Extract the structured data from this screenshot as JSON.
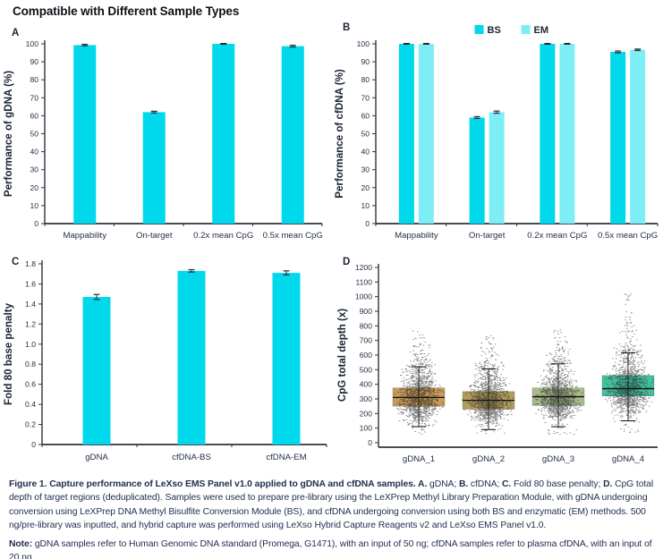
{
  "page_title": "Compatible with Different Sample Types",
  "colors": {
    "bs_cyan": "#00d8ec",
    "em_cyan": "#7deef6",
    "axis_line": "#2f3338",
    "axis_text": "#233047",
    "error_bar": "#2b2b2b",
    "point_color": "#1b1b1b",
    "caption_text": "#22304f"
  },
  "chart_data": [
    {
      "panel": "A",
      "type": "bar",
      "title": "",
      "xlabel": "",
      "ylabel": "Performance of gDNA (%)",
      "ylim": [
        0,
        100
      ],
      "ystep": 10,
      "categories": [
        "Mappability",
        "On-target",
        "0.2x mean CpG",
        "0.5x mean CpG"
      ],
      "series": [
        {
          "name": "gDNA",
          "color": "#00d8ec",
          "values": [
            99.3,
            62,
            100,
            98.7
          ],
          "errors": [
            0.4,
            0.5,
            0.2,
            0.5
          ]
        }
      ]
    },
    {
      "panel": "B",
      "type": "bar",
      "title": "",
      "xlabel": "",
      "ylabel": "Performance of cfDNA (%)",
      "ylim": [
        0,
        100
      ],
      "ystep": 10,
      "legend": [
        "BS",
        "EM"
      ],
      "legend_position": "top-center",
      "categories": [
        "Mappability",
        "On-target",
        "0.2x mean CpG",
        "0.5x mean CpG"
      ],
      "series": [
        {
          "name": "BS",
          "color": "#00d8ec",
          "values": [
            100,
            59,
            100,
            95.5
          ],
          "errors": [
            0.2,
            0.5,
            0.2,
            0.5
          ]
        },
        {
          "name": "EM",
          "color": "#7deef6",
          "values": [
            100,
            62,
            100,
            96.7
          ],
          "errors": [
            0.2,
            0.6,
            0.2,
            0.4
          ]
        }
      ]
    },
    {
      "panel": "C",
      "type": "bar",
      "title": "",
      "xlabel": "",
      "ylabel": "Fold 80 base penalty",
      "ylim": [
        0,
        1.8
      ],
      "ystep": 0.2,
      "categories": [
        "gDNA",
        "cfDNA-BS",
        "cfDNA-EM"
      ],
      "series": [
        {
          "name": "Fold80",
          "color": "#00d8ec",
          "values": [
            1.47,
            1.73,
            1.71
          ],
          "errors": [
            0.025,
            0.012,
            0.02
          ]
        }
      ]
    },
    {
      "panel": "D",
      "type": "jitter-box",
      "title": "",
      "xlabel": "",
      "ylabel": "CpG total depth (x)",
      "ylim": [
        0,
        1200
      ],
      "ystep": 100,
      "groups": [
        {
          "label": "gDNA_1",
          "box_color": "#c79a5b",
          "median": 310,
          "q1": 250,
          "q3": 375,
          "whisker_low": 110,
          "whisker_high": 520,
          "min": 60,
          "max": 765,
          "n": 1400
        },
        {
          "label": "gDNA_2",
          "box_color": "#b29d5e",
          "median": 290,
          "q1": 230,
          "q3": 350,
          "whisker_low": 90,
          "whisker_high": 505,
          "min": 55,
          "max": 735,
          "n": 1400
        },
        {
          "label": "gDNA_3",
          "box_color": "#a8bb8c",
          "median": 315,
          "q1": 255,
          "q3": 375,
          "whisker_low": 110,
          "whisker_high": 540,
          "min": 50,
          "max": 785,
          "n": 1400
        },
        {
          "label": "gDNA_4",
          "box_color": "#46bf9f",
          "median": 370,
          "q1": 320,
          "q3": 460,
          "whisker_low": 150,
          "whisker_high": 615,
          "min": 70,
          "max": 1030,
          "n": 1400
        }
      ]
    }
  ],
  "caption": {
    "segments": [
      {
        "b": true,
        "t": "Figure 1. Capture performance of LeXso EMS Panel v1.0 applied to gDNA and cfDNA samples. A."
      },
      {
        "b": false,
        "t": " gDNA; "
      },
      {
        "b": true,
        "t": "B."
      },
      {
        "b": false,
        "t": " cfDNA; "
      },
      {
        "b": true,
        "t": "C."
      },
      {
        "b": false,
        "t": " Fold 80 base penalty; "
      },
      {
        "b": true,
        "t": "D."
      },
      {
        "b": false,
        "t": " CpG total depth of target regions (deduplicated). Samples were used to prepare pre-library using the LeXPrep Methyl Library Preparation Module, with gDNA undergoing conversion using LeXPrep DNA Methyl Bisulfite Conversion Module (BS), and cfDNA undergoing conversion using both BS and enzymatic (EM) methods. 500 ng/pre-library was inputted, and hybrid capture was performed using LeXso Hybrid Capture Reagents v2 and LeXso EMS Panel v1.0."
      }
    ],
    "note_segments": [
      {
        "b": true,
        "t": "Note:"
      },
      {
        "b": false,
        "t": " gDNA samples refer to Human Genomic DNA standard (Promega, G1471), with an input of 50 ng; cfDNA samples refer to plasma cfDNA, with an input of 20 ng."
      }
    ]
  }
}
